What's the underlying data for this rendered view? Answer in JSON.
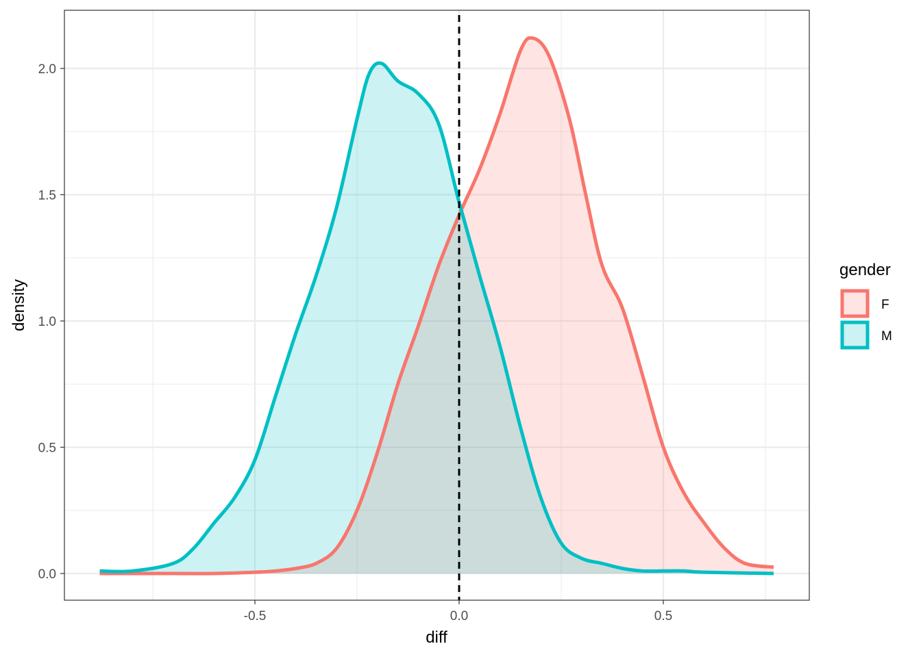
{
  "chart_data": {
    "type": "area",
    "subtype": "density",
    "xlabel": "diff",
    "ylabel": "density",
    "xlim": [
      -0.92,
      0.85
    ],
    "ylim": [
      -0.1,
      2.25
    ],
    "x_ticks": [
      {
        "value": -0.5,
        "label": "-0.5"
      },
      {
        "value": 0.0,
        "label": "0.0"
      },
      {
        "value": 0.5,
        "label": "0.5"
      }
    ],
    "x_minor": [
      -0.75,
      -0.25,
      0.25,
      0.75
    ],
    "y_ticks": [
      {
        "value": 0.0,
        "label": "0.0"
      },
      {
        "value": 0.5,
        "label": "0.5"
      },
      {
        "value": 1.0,
        "label": "1.0"
      },
      {
        "value": 1.5,
        "label": "1.5"
      },
      {
        "value": 2.0,
        "label": "2.0"
      }
    ],
    "y_minor": [
      0.25,
      0.75,
      1.25,
      1.75
    ],
    "grid": true,
    "reference_line": {
      "x": 0.0,
      "style": "dashed",
      "color": "#000000"
    },
    "legend": {
      "title": "gender",
      "position": "right"
    },
    "series": [
      {
        "name": "F",
        "color": "#F8766D",
        "fill": "#F8766D",
        "fill_opacity": 0.2,
        "points": [
          [
            -0.88,
            0.0
          ],
          [
            -0.7,
            0.0
          ],
          [
            -0.6,
            0.0
          ],
          [
            -0.5,
            0.005
          ],
          [
            -0.45,
            0.01
          ],
          [
            -0.4,
            0.02
          ],
          [
            -0.35,
            0.04
          ],
          [
            -0.3,
            0.1
          ],
          [
            -0.25,
            0.25
          ],
          [
            -0.2,
            0.48
          ],
          [
            -0.15,
            0.75
          ],
          [
            -0.1,
            0.98
          ],
          [
            -0.05,
            1.22
          ],
          [
            0.0,
            1.42
          ],
          [
            0.05,
            1.6
          ],
          [
            0.1,
            1.82
          ],
          [
            0.15,
            2.07
          ],
          [
            0.18,
            2.12
          ],
          [
            0.22,
            2.05
          ],
          [
            0.27,
            1.8
          ],
          [
            0.31,
            1.5
          ],
          [
            0.35,
            1.22
          ],
          [
            0.4,
            1.05
          ],
          [
            0.45,
            0.78
          ],
          [
            0.5,
            0.5
          ],
          [
            0.55,
            0.32
          ],
          [
            0.6,
            0.2
          ],
          [
            0.65,
            0.1
          ],
          [
            0.7,
            0.04
          ],
          [
            0.77,
            0.025
          ]
        ]
      },
      {
        "name": "M",
        "color": "#00BFC4",
        "fill": "#00BFC4",
        "fill_opacity": 0.2,
        "points": [
          [
            -0.88,
            0.01
          ],
          [
            -0.8,
            0.01
          ],
          [
            -0.7,
            0.04
          ],
          [
            -0.65,
            0.1
          ],
          [
            -0.6,
            0.2
          ],
          [
            -0.55,
            0.3
          ],
          [
            -0.5,
            0.45
          ],
          [
            -0.45,
            0.7
          ],
          [
            -0.4,
            0.95
          ],
          [
            -0.35,
            1.18
          ],
          [
            -0.3,
            1.45
          ],
          [
            -0.25,
            1.8
          ],
          [
            -0.22,
            1.98
          ],
          [
            -0.19,
            2.02
          ],
          [
            -0.15,
            1.95
          ],
          [
            -0.1,
            1.9
          ],
          [
            -0.05,
            1.78
          ],
          [
            0.0,
            1.47
          ],
          [
            0.05,
            1.18
          ],
          [
            0.1,
            0.9
          ],
          [
            0.15,
            0.58
          ],
          [
            0.2,
            0.3
          ],
          [
            0.25,
            0.12
          ],
          [
            0.3,
            0.06
          ],
          [
            0.35,
            0.04
          ],
          [
            0.4,
            0.02
          ],
          [
            0.45,
            0.01
          ],
          [
            0.5,
            0.01
          ],
          [
            0.55,
            0.01
          ],
          [
            0.6,
            0.005
          ],
          [
            0.77,
            0.0
          ]
        ]
      }
    ]
  }
}
